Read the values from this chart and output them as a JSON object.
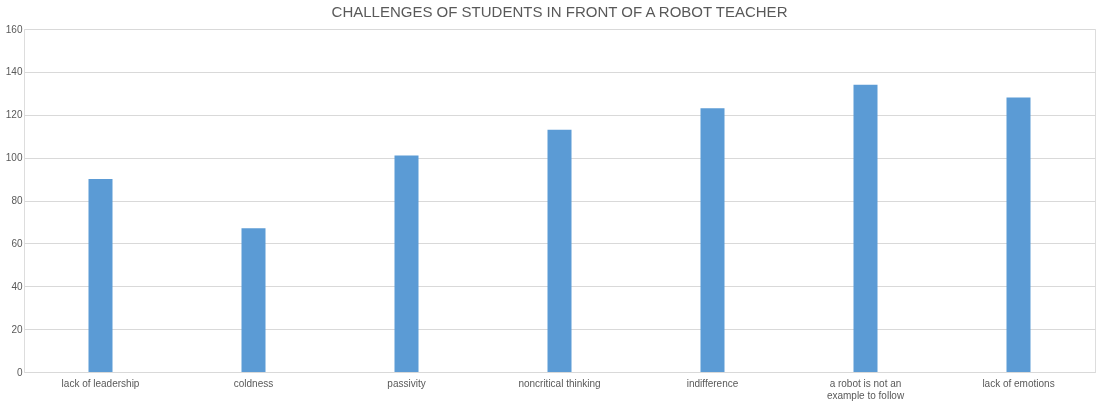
{
  "chart_data": {
    "type": "bar",
    "title": "CHALLENGES OF STUDENTS IN FRONT OF A ROBOT TEACHER",
    "categories": [
      "lack of leadership",
      "coldness",
      "passivity",
      "noncritical thinking",
      "indifference",
      "a robot is not an example to follow",
      "lack of emotions"
    ],
    "values": [
      90,
      67,
      101,
      113,
      123,
      134,
      128
    ],
    "color": "#5b9bd5",
    "ylim": [
      0,
      160
    ],
    "yticks": [
      0,
      20,
      40,
      60,
      80,
      100,
      120,
      140,
      160
    ],
    "grid": "y"
  }
}
